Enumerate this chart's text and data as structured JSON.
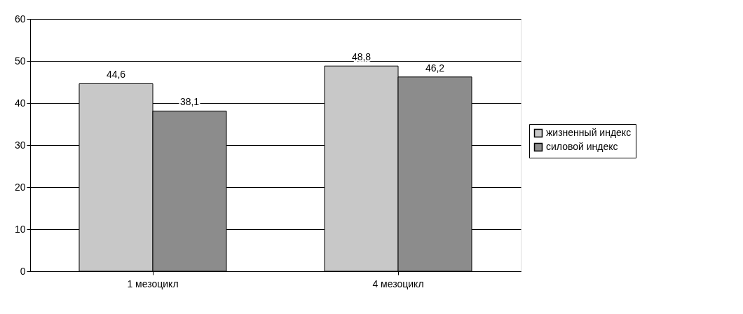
{
  "chart_data": {
    "type": "bar",
    "categories": [
      "1 мезоцикл",
      "4 мезоцикл"
    ],
    "series": [
      {
        "name": "жизненный индекс",
        "color": "#c8c8c8",
        "values": [
          44.6,
          48.8
        ],
        "value_labels": [
          "44,6",
          "48,8"
        ]
      },
      {
        "name": "силовой индекс",
        "color": "#8c8c8c",
        "values": [
          38.1,
          46.2
        ],
        "value_labels": [
          "38,1",
          "46,2"
        ]
      }
    ],
    "ylim": [
      0,
      60
    ],
    "yticks": [
      0,
      10,
      20,
      30,
      40,
      50,
      60
    ],
    "grid": "y",
    "legend": "right"
  }
}
